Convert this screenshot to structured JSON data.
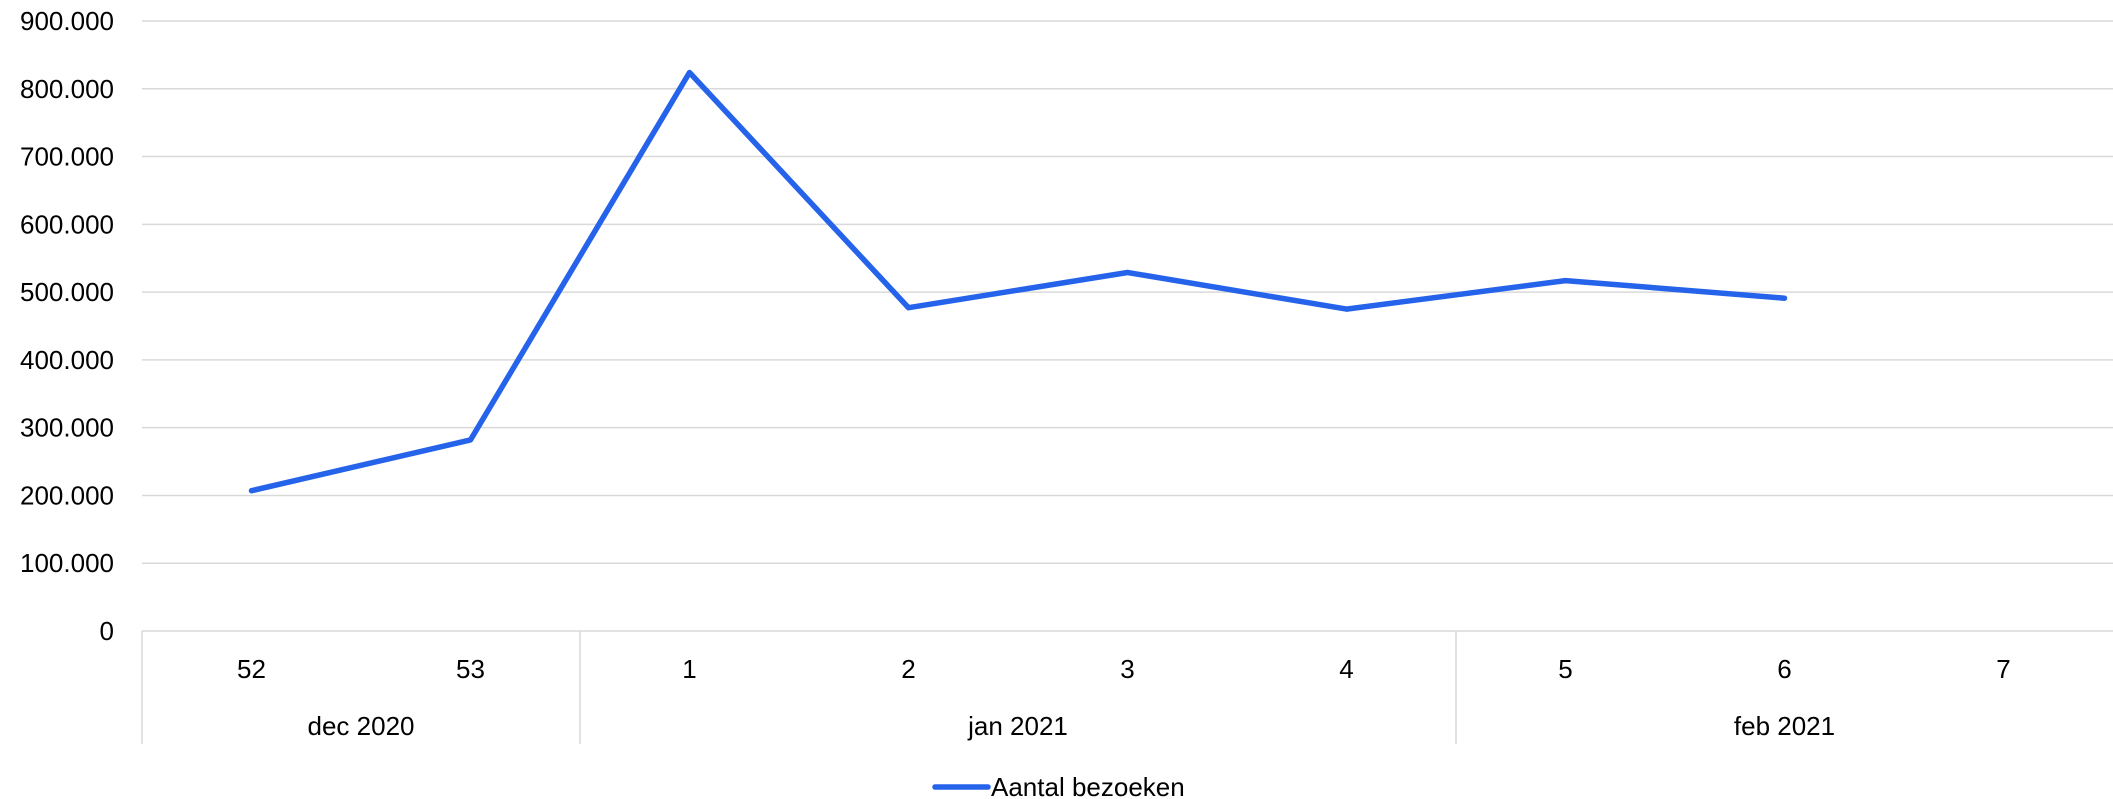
{
  "chart_data": {
    "type": "line",
    "x_groups": [
      {
        "label": "dec 2020",
        "categories": [
          "52",
          "53"
        ]
      },
      {
        "label": "jan 2021",
        "categories": [
          "1",
          "2",
          "3",
          "4"
        ]
      },
      {
        "label": "feb 2021",
        "categories": [
          "5",
          "6",
          "7"
        ]
      }
    ],
    "categories": [
      "52",
      "53",
      "1",
      "2",
      "3",
      "4",
      "5",
      "6",
      "7"
    ],
    "series": [
      {
        "name": "Aantal bezoeken",
        "color": "#2563eb",
        "values": [
          207000,
          282000,
          824000,
          477000,
          529000,
          475000,
          517000,
          491000,
          null
        ]
      }
    ],
    "ylim": [
      0,
      900000
    ],
    "yticks": [
      0,
      100000,
      200000,
      300000,
      400000,
      500000,
      600000,
      700000,
      800000,
      900000
    ],
    "ytick_labels": [
      "0",
      "100.000",
      "200.000",
      "300.000",
      "400.000",
      "500.000",
      "600.000",
      "700.000",
      "800.000",
      "900.000"
    ],
    "grid": true,
    "gridline_color": "#d9d9d9",
    "legend_position": "bottom"
  }
}
